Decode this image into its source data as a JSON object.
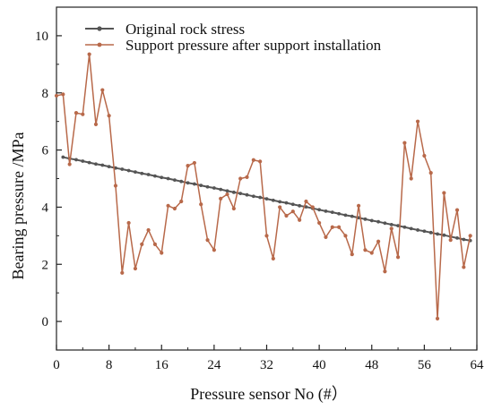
{
  "chart_data": {
    "type": "line",
    "xlabel": "Pressure sensor No (#）",
    "ylabel": "Bearing pressure /MPa",
    "xlim": [
      0,
      64
    ],
    "ylim": [
      -1,
      11
    ],
    "xticks": [
      0,
      8,
      16,
      24,
      32,
      40,
      48,
      56,
      64
    ],
    "yticks": [
      0,
      2,
      4,
      6,
      8,
      10
    ],
    "grid": false,
    "legend_position": "top-left",
    "series": [
      {
        "name": "Original rock stress",
        "color": "#555555",
        "x": [
          1,
          2,
          3,
          4,
          5,
          6,
          7,
          8,
          9,
          10,
          11,
          12,
          13,
          14,
          15,
          16,
          17,
          18,
          19,
          20,
          21,
          22,
          23,
          24,
          25,
          26,
          27,
          28,
          29,
          30,
          31,
          32,
          33,
          34,
          35,
          36,
          37,
          38,
          39,
          40,
          41,
          42,
          43,
          44,
          45,
          46,
          47,
          48,
          49,
          50,
          51,
          52,
          53,
          54,
          55,
          56,
          57,
          58,
          59,
          60,
          61,
          62,
          63
        ],
        "values": [
          5.75,
          5.7,
          5.66,
          5.61,
          5.56,
          5.51,
          5.47,
          5.42,
          5.37,
          5.33,
          5.28,
          5.23,
          5.18,
          5.14,
          5.09,
          5.04,
          5.0,
          4.95,
          4.9,
          4.85,
          4.81,
          4.76,
          4.71,
          4.67,
          4.62,
          4.57,
          4.52,
          4.48,
          4.43,
          4.38,
          4.34,
          4.29,
          4.24,
          4.19,
          4.15,
          4.1,
          4.05,
          4.01,
          3.96,
          3.91,
          3.86,
          3.82,
          3.77,
          3.72,
          3.68,
          3.63,
          3.58,
          3.53,
          3.49,
          3.44,
          3.39,
          3.35,
          3.3,
          3.25,
          3.2,
          3.16,
          3.11,
          3.06,
          3.02,
          2.97,
          2.92,
          2.87,
          2.83
        ]
      },
      {
        "name": "Support pressure after support installation",
        "color": "#b8694a",
        "x": [
          0,
          1,
          2,
          3,
          4,
          5,
          6,
          7,
          8,
          9,
          10,
          11,
          12,
          13,
          14,
          15,
          16,
          17,
          18,
          19,
          20,
          21,
          22,
          23,
          24,
          25,
          26,
          27,
          28,
          29,
          30,
          31,
          32,
          33,
          34,
          35,
          36,
          37,
          38,
          39,
          40,
          41,
          42,
          43,
          44,
          45,
          46,
          47,
          48,
          49,
          50,
          51,
          52,
          53,
          54,
          55,
          56,
          57,
          58,
          59,
          60,
          61,
          62,
          63
        ],
        "values": [
          7.9,
          7.95,
          5.5,
          7.3,
          7.25,
          9.35,
          6.9,
          8.1,
          7.2,
          4.75,
          1.7,
          3.45,
          1.85,
          2.7,
          3.2,
          2.7,
          2.4,
          4.05,
          3.95,
          4.2,
          5.45,
          5.55,
          4.1,
          2.85,
          2.5,
          4.3,
          4.45,
          3.95,
          5.0,
          5.05,
          5.65,
          5.6,
          3.0,
          2.2,
          4.0,
          3.7,
          3.85,
          3.55,
          4.2,
          4.0,
          3.45,
          2.95,
          3.3,
          3.3,
          3.0,
          2.35,
          4.05,
          2.5,
          2.4,
          2.8,
          1.75,
          3.25,
          2.25,
          6.25,
          5.0,
          7.0,
          5.8,
          5.2,
          0.1,
          4.5,
          2.85,
          3.9,
          1.9,
          3.0
        ]
      }
    ]
  }
}
